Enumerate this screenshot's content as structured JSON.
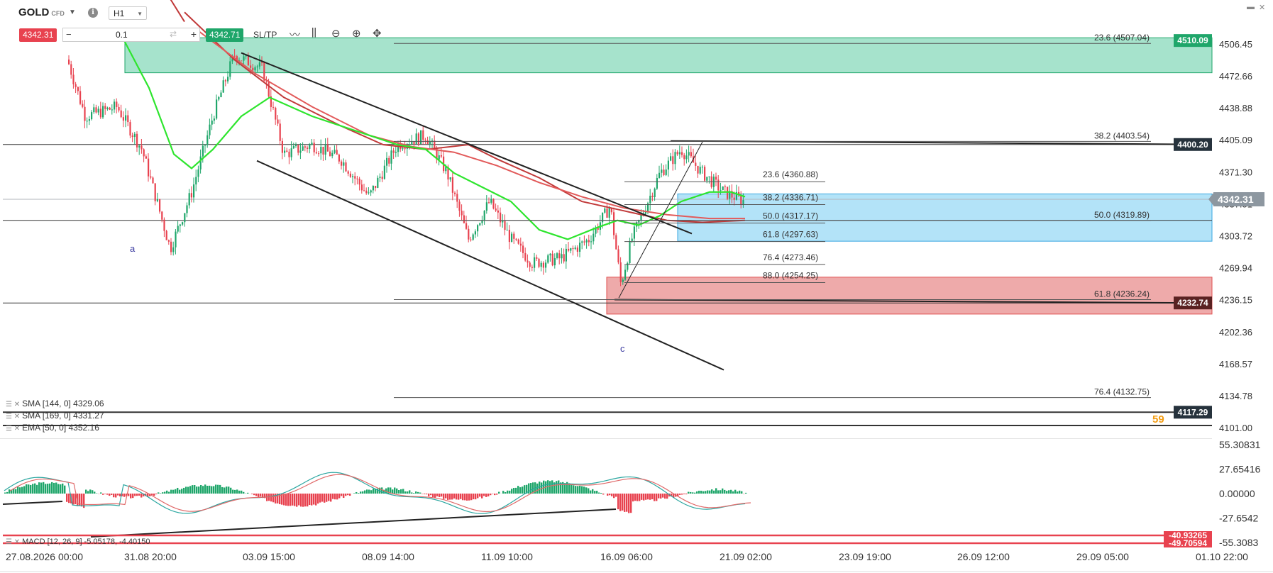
{
  "header": {
    "symbol": "GOLD",
    "symbol_tag": "CFD",
    "timeframe": "H1",
    "sell_price": "4342.31",
    "quantity": "0.1",
    "buy_price": "4342.71",
    "sltp_label": "SL/TP"
  },
  "legend": {
    "items": [
      {
        "label": "SMA [144, 0] 4329.06"
      },
      {
        "label": "SMA [169, 0] 4331.27"
      },
      {
        "label": "EMA [50, 0] 4352.16"
      }
    ],
    "macd_label": "MACD [12, 26, 9]  -5.05178, -4.40150",
    "countdown_label": "59"
  },
  "colors": {
    "bull_candle": "#1fa66a",
    "bear_candle": "#e8424f",
    "ema": "#2ee52e",
    "sma144": "#c13a3a",
    "sma169": "#e25a5a",
    "demand_zone": "#eeaaaa",
    "supply_zone": "#a6e3cc",
    "blue_zone": "#b3e3f8",
    "dark_label": "#26323c",
    "accent_price": "#8d97a0"
  },
  "chart_data": {
    "type": "candlestick",
    "instrument": "GOLD",
    "timeframe": "H1",
    "current_price": 4342.31,
    "price_axis": {
      "ticks": [
        "4506.45",
        "4472.66",
        "4438.88",
        "4405.09",
        "4371.30",
        "4337.51",
        "4303.72",
        "4269.94",
        "4236.15",
        "4202.36",
        "4168.57",
        "4134.78",
        "4101.00"
      ]
    },
    "x_axis": {
      "ticks": [
        "27.08.2026 00:00",
        "31.08 20:00",
        "03.09 15:00",
        "08.09 14:00",
        "11.09 10:00",
        "16.09 06:00",
        "21.09 02:00",
        "23.09 19:00",
        "26.09 12:00",
        "29.09 05:00",
        "01.10 22:00"
      ]
    },
    "price_labels": [
      {
        "text": "4510.09",
        "price": 4510.09,
        "style": "green"
      },
      {
        "text": "4400.20",
        "price": 4400.2,
        "style": "dark"
      },
      {
        "text": "4342.31",
        "price": 4342.31,
        "style": "current"
      },
      {
        "text": "4232.74",
        "price": 4232.74,
        "style": "dark_red"
      },
      {
        "text": "4117.29",
        "price": 4117.29,
        "style": "dark"
      }
    ],
    "fib_levels": [
      {
        "label": "23.6 (4507.04)",
        "price": 4507.04
      },
      {
        "label": "38.2 (4403.54)",
        "price": 4403.54
      },
      {
        "label": "50.0 (4319.89)",
        "price": 4319.89
      },
      {
        "label": "61.8 (4236.24)",
        "price": 4236.24
      },
      {
        "label": "76.4 (4132.75)",
        "price": 4132.75
      }
    ],
    "fib_retracement": [
      {
        "label": "23.6 (4360.88)",
        "price": 4360.88
      },
      {
        "label": "38.2 (4336.71)",
        "price": 4336.71
      },
      {
        "label": "50.0 (4317.17)",
        "price": 4317.17
      },
      {
        "label": "61.8 (4297.63)",
        "price": 4297.63
      },
      {
        "label": "76.4 (4273.46)",
        "price": 4273.46
      },
      {
        "label": "88.0 (4254.25)",
        "price": 4254.25
      }
    ],
    "horizontal_lines": [
      4400.2,
      4342.31,
      4320.0,
      4232.74,
      4117.29
    ],
    "zones": [
      {
        "name": "supply",
        "from": 4476.0,
        "to": 4513.0
      },
      {
        "name": "blue",
        "from": 4298.0,
        "to": 4348.0
      },
      {
        "name": "demand",
        "from": 4221.0,
        "to": 4260.0
      }
    ],
    "wave_labels": [
      {
        "text": "a",
        "price": 4296.0
      },
      {
        "text": "c",
        "price": 4190.0
      }
    ],
    "macd": {
      "label": "MACD [12, 26, 9]",
      "values": [
        -5.05178,
        -4.4015
      ],
      "axis_ticks": [
        "55.30831",
        "27.65416",
        "0.00000",
        "-27.6542",
        "-55.3083"
      ],
      "badges": [
        "-40.93265",
        "-49.70594"
      ]
    }
  }
}
